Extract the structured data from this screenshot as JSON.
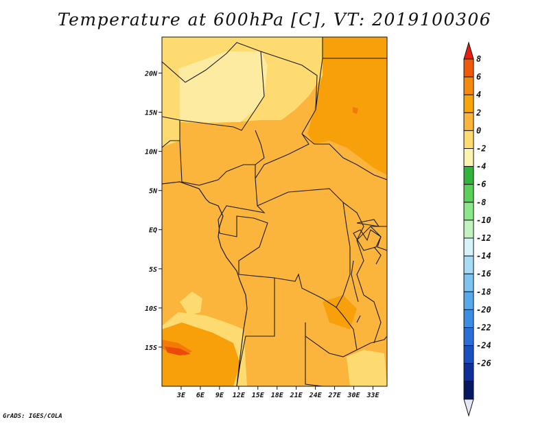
{
  "title": "Temperature at 600hPa [C], VT: 2019100306",
  "footer": "GrADS: IGES/COLA",
  "map": {
    "region": "Central Africa",
    "lon_range": [
      0,
      35
    ],
    "lat_range": [
      -20,
      25
    ],
    "lat_ticks": [
      {
        "value": 20,
        "label": "20N"
      },
      {
        "value": 15,
        "label": "15N"
      },
      {
        "value": 10,
        "label": "10N"
      },
      {
        "value": 5,
        "label": "5N"
      },
      {
        "value": 0,
        "label": "EQ"
      },
      {
        "value": -5,
        "label": "5S"
      },
      {
        "value": -10,
        "label": "10S"
      },
      {
        "value": -15,
        "label": "15S"
      }
    ],
    "lon_ticks": [
      {
        "value": 3,
        "label": "3E"
      },
      {
        "value": 6,
        "label": "6E"
      },
      {
        "value": 9,
        "label": "9E"
      },
      {
        "value": 12,
        "label": "12E"
      },
      {
        "value": 15,
        "label": "15E"
      },
      {
        "value": 18,
        "label": "18E"
      },
      {
        "value": 21,
        "label": "21E"
      },
      {
        "value": 24,
        "label": "24E"
      },
      {
        "value": 27,
        "label": "27E"
      },
      {
        "value": 30,
        "label": "30E"
      },
      {
        "value": 33,
        "label": "33E"
      }
    ],
    "fill_colors": {
      "level_0_2": "#fbb53c",
      "level_2_4": "#f8a00a",
      "level_m2_0": "#fddb70",
      "level_m4_m2": "#fdeba1",
      "level_4_6": "#f47a08",
      "level_6_8": "#ec4a0a"
    }
  },
  "colorbar": {
    "labels": [
      "8",
      "6",
      "4",
      "2",
      "0",
      "-2",
      "-4",
      "-6",
      "-8",
      "-10",
      "-12",
      "-14",
      "-16",
      "-18",
      "-20",
      "-22",
      "-24",
      "-26"
    ],
    "colors": [
      "#e42010",
      "#ee5a0a",
      "#f58a0a",
      "#f8a50a",
      "#fbb53c",
      "#fddb70",
      "#fdf3b0",
      "#31b33c",
      "#5ad05a",
      "#8ee68a",
      "#c2f2c0",
      "#d6f2fa",
      "#a8dcf5",
      "#7fc3f0",
      "#58a8ea",
      "#3c8ee2",
      "#2a6fd6",
      "#1a4fc0",
      "#0e2e98",
      "#081860",
      "#e6e6f5"
    ]
  }
}
